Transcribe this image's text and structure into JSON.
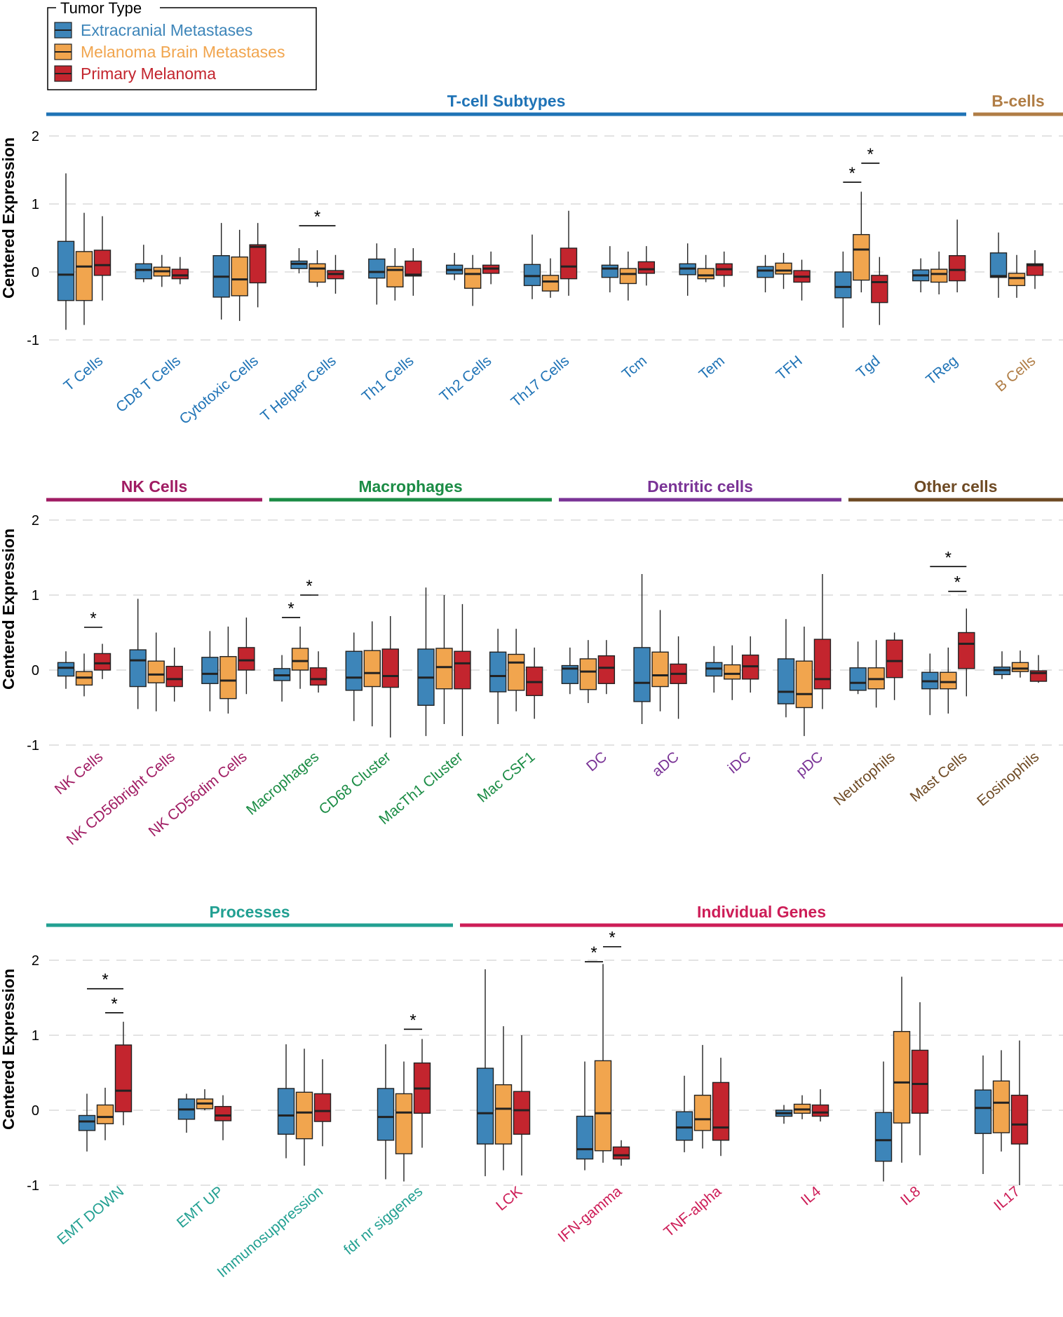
{
  "legend": {
    "title": "Tumor Type",
    "items": [
      {
        "label": "Extracranial Metastases",
        "color": "#3d85b9"
      },
      {
        "label": "Melanoma Brain Metastases",
        "color": "#f1a54e"
      },
      {
        "label": "Primary Melanoma",
        "color": "#c3252e"
      }
    ]
  },
  "chart_data": [
    {
      "type": "boxplot",
      "ylabel": "Centered Expression",
      "ylim": [
        -1.2,
        2.2
      ],
      "yticks": [
        "-1",
        "0",
        "1",
        "2"
      ],
      "groups": [
        {
          "name": "T-cell Subtypes",
          "color": "#1f73b6",
          "categories": [
            "T Cells",
            "CD8 T Cells",
            "Cytotoxic Cells",
            "T Helper Cells",
            "Th1 Cells",
            "Th2 Cells",
            "Th17 Cells",
            "Tcm",
            "Tem",
            "TFH",
            "Tgd",
            "TReg"
          ]
        },
        {
          "name": "B-cells",
          "color": "#b07d45",
          "categories": [
            "B Cells"
          ]
        }
      ],
      "boxes": [
        [
          [
            -0.85,
            -0.42,
            -0.04,
            0.45,
            1.45
          ],
          [
            -0.78,
            -0.42,
            0.08,
            0.3,
            0.87
          ],
          [
            -0.42,
            -0.05,
            0.1,
            0.32,
            0.82
          ]
        ],
        [
          [
            -0.15,
            -0.1,
            0.03,
            0.12,
            0.4
          ],
          [
            -0.22,
            -0.06,
            0.01,
            0.07,
            0.25
          ],
          [
            -0.18,
            -0.1,
            -0.05,
            0.04,
            0.22
          ]
        ],
        [
          [
            -0.7,
            -0.37,
            -0.07,
            0.24,
            0.72
          ],
          [
            -0.72,
            -0.35,
            -0.11,
            0.22,
            0.62
          ],
          [
            -0.52,
            -0.16,
            0.37,
            0.4,
            0.72
          ]
        ],
        [
          [
            -0.02,
            0.05,
            0.12,
            0.16,
            0.35
          ],
          [
            -0.22,
            -0.15,
            0.05,
            0.12,
            0.32
          ],
          [
            -0.32,
            -0.1,
            -0.03,
            0.02,
            0.25
          ]
        ],
        [
          [
            -0.48,
            -0.09,
            0.0,
            0.19,
            0.42
          ],
          [
            -0.42,
            -0.22,
            0.03,
            0.08,
            0.35
          ],
          [
            -0.35,
            -0.06,
            -0.04,
            0.16,
            0.35
          ]
        ],
        [
          [
            -0.12,
            -0.03,
            0.03,
            0.1,
            0.28
          ],
          [
            -0.5,
            -0.24,
            -0.03,
            0.05,
            0.25
          ],
          [
            -0.18,
            -0.02,
            0.05,
            0.1,
            0.3
          ]
        ],
        [
          [
            -0.4,
            -0.2,
            -0.06,
            0.11,
            0.55
          ],
          [
            -0.38,
            -0.28,
            -0.14,
            -0.05,
            0.2
          ],
          [
            -0.35,
            -0.1,
            0.08,
            0.35,
            0.9
          ]
        ],
        [
          [
            -0.3,
            -0.08,
            0.05,
            0.1,
            0.38
          ],
          [
            -0.42,
            -0.17,
            -0.03,
            0.05,
            0.3
          ],
          [
            -0.2,
            -0.02,
            0.04,
            0.15,
            0.38
          ]
        ],
        [
          [
            -0.35,
            -0.04,
            0.05,
            0.12,
            0.42
          ],
          [
            -0.15,
            -0.1,
            -0.05,
            0.05,
            0.25
          ],
          [
            -0.22,
            -0.05,
            0.04,
            0.12,
            0.3
          ]
        ],
        [
          [
            -0.3,
            -0.08,
            0.02,
            0.08,
            0.25
          ],
          [
            -0.25,
            -0.03,
            0.02,
            0.13,
            0.28
          ],
          [
            -0.42,
            -0.15,
            -0.07,
            0.02,
            0.18
          ]
        ],
        [
          [
            -0.82,
            -0.38,
            -0.22,
            0.0,
            0.3
          ],
          [
            -0.3,
            -0.12,
            0.33,
            0.55,
            1.18
          ],
          [
            -0.78,
            -0.45,
            -0.15,
            -0.05,
            0.22
          ]
        ],
        [
          [
            -0.3,
            -0.13,
            -0.05,
            0.03,
            0.2
          ],
          [
            -0.33,
            -0.15,
            -0.03,
            0.04,
            0.3
          ],
          [
            -0.3,
            -0.13,
            0.03,
            0.24,
            0.77
          ]
        ],
        [
          [
            -0.38,
            -0.08,
            -0.06,
            0.28,
            0.58
          ],
          [
            -0.38,
            -0.2,
            -0.09,
            -0.02,
            0.25
          ],
          [
            -0.25,
            -0.05,
            0.1,
            0.12,
            0.32
          ]
        ]
      ],
      "annotations": [
        {
          "label": "*",
          "category": "T Helper Cells",
          "from": 0,
          "to": 2,
          "y": 0.68
        },
        {
          "label": "*",
          "category": "Tgd",
          "from": 0,
          "to": 1,
          "y": 1.32
        },
        {
          "label": "*",
          "category": "Tgd",
          "from": 1,
          "to": 2,
          "y": 1.6
        }
      ]
    },
    {
      "type": "boxplot",
      "ylabel": "Centered Expression",
      "ylim": [
        -1.2,
        2.2
      ],
      "yticks": [
        "-1",
        "0",
        "1",
        "2"
      ],
      "groups": [
        {
          "name": "NK Cells",
          "color": "#a01c63",
          "categories": [
            "NK Cells",
            "NK CD56bright Cells",
            "NK CD56dim Cells"
          ]
        },
        {
          "name": "Macrophages",
          "color": "#1b8c45",
          "categories": [
            "Macrophages",
            "CD68 Cluster",
            "MacTh1 Cluster",
            "Mac CSF1"
          ]
        },
        {
          "name": "Dentritic cells",
          "color": "#7a3396",
          "categories": [
            "DC",
            "aDC",
            "iDC",
            "pDC"
          ]
        },
        {
          "name": "Other cells",
          "color": "#6e4a24",
          "categories": [
            "Neutrophils",
            "Mast Cells",
            "Eosinophils"
          ]
        }
      ],
      "boxes": [
        [
          [
            -0.25,
            -0.08,
            0.03,
            0.1,
            0.25
          ],
          [
            -0.35,
            -0.2,
            -0.1,
            -0.02,
            0.22
          ],
          [
            -0.12,
            0.0,
            0.09,
            0.22,
            0.35
          ]
        ],
        [
          [
            -0.52,
            -0.22,
            0.13,
            0.27,
            0.95
          ],
          [
            -0.55,
            -0.17,
            -0.06,
            0.12,
            0.5
          ],
          [
            -0.42,
            -0.22,
            -0.12,
            0.05,
            0.3
          ]
        ],
        [
          [
            -0.55,
            -0.18,
            -0.05,
            0.17,
            0.52
          ],
          [
            -0.58,
            -0.38,
            -0.14,
            0.18,
            0.58
          ],
          [
            -0.32,
            0.0,
            0.13,
            0.3,
            0.7
          ]
        ],
        [
          [
            -0.42,
            -0.14,
            -0.07,
            0.02,
            0.2
          ],
          [
            -0.25,
            0.0,
            0.12,
            0.29,
            0.58
          ],
          [
            -0.3,
            -0.2,
            -0.12,
            0.03,
            0.25
          ]
        ],
        [
          [
            -0.68,
            -0.27,
            -0.1,
            0.25,
            0.5
          ],
          [
            -0.75,
            -0.22,
            -0.04,
            0.26,
            0.65
          ],
          [
            -0.9,
            -0.23,
            -0.08,
            0.28,
            0.72
          ]
        ],
        [
          [
            -0.88,
            -0.47,
            -0.1,
            0.28,
            1.1
          ],
          [
            -0.72,
            -0.25,
            0.04,
            0.29,
            1.0
          ],
          [
            -0.88,
            -0.25,
            0.09,
            0.25,
            0.88
          ]
        ],
        [
          [
            -0.72,
            -0.29,
            -0.08,
            0.24,
            0.55
          ],
          [
            -0.55,
            -0.27,
            0.1,
            0.21,
            0.55
          ],
          [
            -0.65,
            -0.34,
            -0.16,
            0.04,
            0.3
          ]
        ],
        [
          [
            -0.32,
            -0.18,
            0.02,
            0.06,
            0.3
          ],
          [
            -0.44,
            -0.26,
            -0.02,
            0.15,
            0.4
          ],
          [
            -0.32,
            -0.18,
            0.03,
            0.19,
            0.4
          ]
        ],
        [
          [
            -0.72,
            -0.42,
            -0.17,
            0.3,
            1.28
          ],
          [
            -0.55,
            -0.22,
            -0.07,
            0.24,
            0.8
          ],
          [
            -0.65,
            -0.18,
            -0.05,
            0.08,
            0.45
          ]
        ],
        [
          [
            -0.3,
            -0.08,
            0.02,
            0.1,
            0.32
          ],
          [
            -0.4,
            -0.12,
            -0.05,
            0.07,
            0.33
          ],
          [
            -0.3,
            -0.12,
            0.05,
            0.2,
            0.45
          ]
        ],
        [
          [
            -0.63,
            -0.45,
            -0.29,
            0.15,
            0.68
          ],
          [
            -0.88,
            -0.5,
            -0.32,
            0.12,
            0.58
          ],
          [
            -0.52,
            -0.25,
            -0.12,
            0.41,
            1.28
          ]
        ],
        [
          [
            -0.32,
            -0.27,
            -0.17,
            0.03,
            0.38
          ],
          [
            -0.5,
            -0.25,
            -0.12,
            0.03,
            0.4
          ],
          [
            -0.4,
            -0.1,
            0.12,
            0.4,
            0.5
          ]
        ],
        [
          [
            -0.6,
            -0.25,
            -0.15,
            -0.03,
            0.22
          ],
          [
            -0.58,
            -0.25,
            -0.16,
            -0.03,
            0.3
          ],
          [
            -0.35,
            0.02,
            0.35,
            0.5,
            0.82
          ]
        ],
        [
          [
            -0.12,
            -0.06,
            0.0,
            0.04,
            0.25
          ],
          [
            -0.1,
            -0.02,
            0.02,
            0.1,
            0.26
          ],
          [
            -0.17,
            -0.15,
            -0.04,
            -0.01,
            0.2
          ]
        ]
      ],
      "annotations": [
        {
          "label": "*",
          "category": "NK Cells",
          "from": 1,
          "to": 2,
          "y": 0.57
        },
        {
          "label": "*",
          "category": "Macrophages",
          "from": 0,
          "to": 1,
          "y": 0.7
        },
        {
          "label": "*",
          "category": "Macrophages",
          "from": 1,
          "to": 2,
          "y": 1.0
        },
        {
          "label": "*",
          "category": "Mast Cells",
          "from": 1,
          "to": 2,
          "y": 1.05
        },
        {
          "label": "*",
          "category": "Mast Cells",
          "from": 0,
          "to": 2,
          "y": 1.38
        }
      ]
    },
    {
      "type": "boxplot",
      "ylabel": "Centered Expression",
      "ylim": [
        -1.2,
        2.2
      ],
      "yticks": [
        "-1",
        "0",
        "1",
        "2"
      ],
      "groups": [
        {
          "name": "Processes",
          "color": "#22a092",
          "categories": [
            "EMT DOWN",
            "EMT UP",
            "Immunosuppression",
            "fdr nr siggenes"
          ]
        },
        {
          "name": "Individual Genes",
          "color": "#cd1d57",
          "categories": [
            "LCK",
            "IFN-gamma",
            "TNF-alpha",
            "IL4",
            "IL8",
            "IL17"
          ]
        }
      ],
      "boxes": [
        [
          [
            -0.55,
            -0.27,
            -0.15,
            -0.07,
            0.22
          ],
          [
            -0.4,
            -0.18,
            -0.09,
            0.07,
            0.3
          ],
          [
            -0.2,
            -0.02,
            0.26,
            0.87,
            1.18
          ]
        ],
        [
          [
            -0.3,
            -0.12,
            0.01,
            0.15,
            0.22
          ],
          [
            0.0,
            0.02,
            0.09,
            0.15,
            0.28
          ],
          [
            -0.4,
            -0.14,
            -0.07,
            0.05,
            0.2
          ]
        ],
        [
          [
            -0.64,
            -0.32,
            -0.07,
            0.29,
            0.88
          ],
          [
            -0.74,
            -0.38,
            -0.03,
            0.24,
            0.82
          ],
          [
            -0.48,
            -0.15,
            -0.01,
            0.22,
            0.68
          ]
        ],
        [
          [
            -0.92,
            -0.4,
            -0.09,
            0.29,
            0.88
          ],
          [
            -0.95,
            -0.58,
            -0.03,
            0.22,
            0.65
          ],
          [
            -0.5,
            -0.04,
            0.29,
            0.63,
            0.95
          ]
        ],
        [
          [
            -0.88,
            -0.45,
            -0.04,
            0.56,
            1.88
          ],
          [
            -0.8,
            -0.45,
            0.02,
            0.34,
            1.12
          ],
          [
            -0.87,
            -0.32,
            0.0,
            0.25,
            1.0
          ]
        ],
        [
          [
            -0.8,
            -0.65,
            -0.52,
            -0.08,
            0.65
          ],
          [
            -0.7,
            -0.54,
            -0.04,
            0.66,
            1.95
          ],
          [
            -0.74,
            -0.65,
            -0.6,
            -0.49,
            -0.4
          ]
        ],
        [
          [
            -0.56,
            -0.4,
            -0.23,
            -0.02,
            0.46
          ],
          [
            -0.51,
            -0.27,
            -0.12,
            0.2,
            0.87
          ],
          [
            -0.61,
            -0.4,
            -0.23,
            0.37,
            0.7
          ]
        ],
        [
          [
            -0.18,
            -0.08,
            -0.04,
            0.0,
            0.07
          ],
          [
            -0.12,
            -0.04,
            0.01,
            0.08,
            0.2
          ],
          [
            -0.15,
            -0.08,
            -0.03,
            0.07,
            0.28
          ]
        ],
        [
          [
            -0.95,
            -0.68,
            -0.4,
            -0.03,
            0.65
          ],
          [
            -0.7,
            -0.17,
            0.37,
            1.05,
            1.78
          ],
          [
            -0.6,
            -0.04,
            0.35,
            0.8,
            1.44
          ]
        ],
        [
          [
            -0.85,
            -0.31,
            0.03,
            0.27,
            0.73
          ],
          [
            -0.55,
            -0.3,
            0.1,
            0.39,
            0.8
          ],
          [
            -1.0,
            -0.45,
            -0.19,
            0.2,
            0.93
          ]
        ]
      ],
      "annotations": [
        {
          "label": "*",
          "category": "EMT DOWN",
          "from": 1,
          "to": 2,
          "y": 1.3
        },
        {
          "label": "*",
          "category": "EMT DOWN",
          "from": 0,
          "to": 2,
          "y": 1.62
        },
        {
          "label": "*",
          "category": "fdr nr siggenes",
          "from": 1,
          "to": 2,
          "y": 1.08
        },
        {
          "label": "*",
          "category": "IFN-gamma",
          "from": 0,
          "to": 1,
          "y": 1.98
        },
        {
          "label": "*",
          "category": "IFN-gamma",
          "from": 1,
          "to": 2,
          "y": 2.18
        }
      ]
    }
  ]
}
